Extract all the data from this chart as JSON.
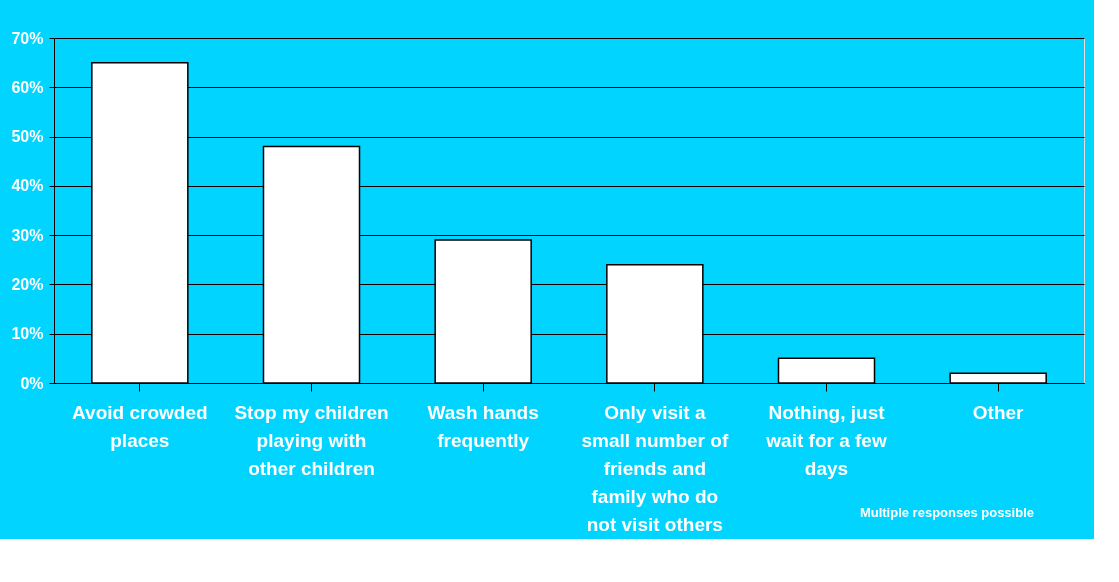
{
  "chart_data": {
    "type": "bar",
    "categories": [
      "Avoid crowded places",
      "Stop my children playing with other children",
      "Wash hands frequently",
      "Only visit a small number of friends and family who do not visit others",
      "Nothing, just wait for a few days",
      "Other"
    ],
    "values": [
      65,
      48,
      29,
      24,
      5,
      2
    ],
    "color": "#ffffff",
    "ylim": [
      0,
      70
    ],
    "yticks": [
      {
        "value": 0,
        "label": "0%"
      },
      {
        "value": 10,
        "label": "10%"
      },
      {
        "value": 20,
        "label": "20%"
      },
      {
        "value": 30,
        "label": "30%"
      },
      {
        "value": 40,
        "label": "40%"
      },
      {
        "value": 50,
        "label": "50%"
      },
      {
        "value": 60,
        "label": "60%"
      },
      {
        "value": 70,
        "label": "70%"
      }
    ],
    "grid": "y",
    "annotations": [
      "Multiple responses possible"
    ]
  }
}
